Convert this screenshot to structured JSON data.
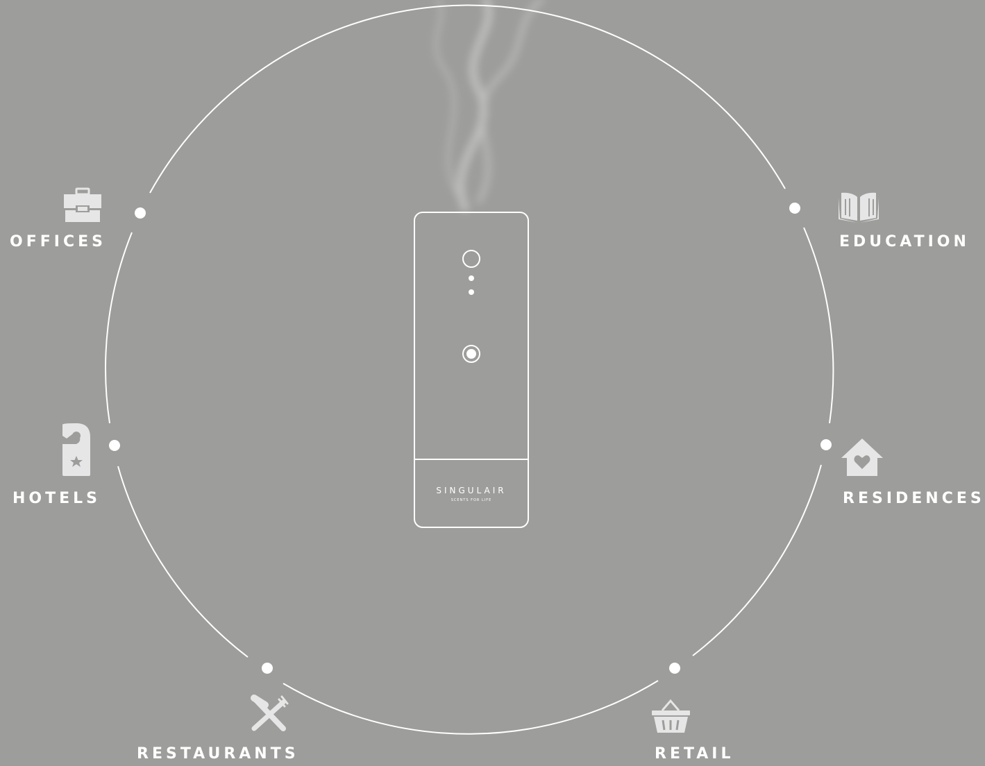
{
  "sectors": [
    {
      "id": "offices",
      "label": "OFFICES",
      "icon": "briefcase-icon"
    },
    {
      "id": "education",
      "label": "EDUCATION",
      "icon": "open-book-icon"
    },
    {
      "id": "hotels",
      "label": "HOTELS",
      "icon": "door-hanger-icon"
    },
    {
      "id": "residences",
      "label": "RESIDENCES",
      "icon": "house-heart-icon"
    },
    {
      "id": "restaurants",
      "label": "RESTAURANTS",
      "icon": "fork-knife-icon"
    },
    {
      "id": "retail",
      "label": "RETAIL",
      "icon": "shopping-basket-icon"
    }
  ],
  "device": {
    "brand": "SINGULAIR",
    "tagline": "SCENTS FOR LIFE"
  },
  "colors": {
    "background": "#9d9d9b",
    "line": "#ffffff",
    "icon": "#e6e6e6"
  }
}
